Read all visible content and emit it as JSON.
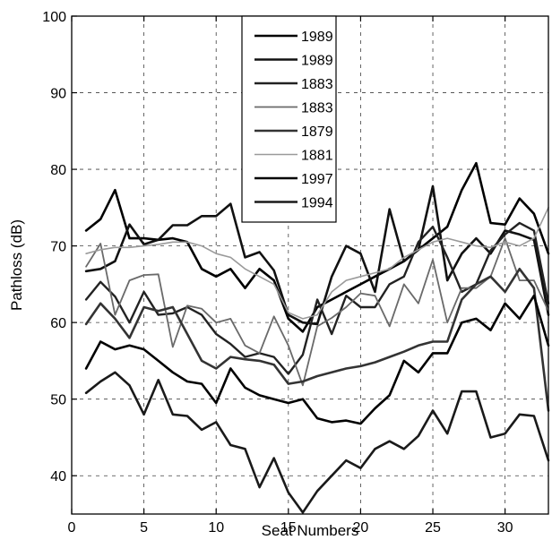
{
  "chart_data": {
    "type": "line",
    "title": "",
    "xlabel": "Seat Numbers",
    "ylabel": "Pathloss (dB)",
    "xlim": [
      0,
      33
    ],
    "ylim": [
      35,
      100
    ],
    "xticks": [
      0,
      5,
      10,
      15,
      20,
      25,
      30
    ],
    "yticks": [
      40,
      50,
      60,
      70,
      80,
      90,
      100
    ],
    "grid": true,
    "legend_position": "top-center",
    "x": [
      1,
      2,
      3,
      4,
      5,
      6,
      7,
      8,
      9,
      10,
      11,
      12,
      13,
      14,
      15,
      16,
      17,
      18,
      19,
      20,
      21,
      22,
      23,
      24,
      25,
      26,
      27,
      28,
      29,
      30,
      31,
      32,
      33
    ],
    "series": [
      {
        "name": "1989",
        "color": "#000000",
        "values": [
          72,
          73.5,
          77.3,
          71,
          71,
          70.8,
          71,
          70.5,
          67,
          66,
          67,
          64.5,
          67,
          65.5,
          60.5,
          58.8,
          62,
          63,
          64,
          65,
          66,
          67,
          68,
          69.5,
          71,
          72.5,
          77.3,
          80.8,
          73,
          72.8,
          76.2,
          74.2,
          69
        ]
      },
      {
        "name": "1989",
        "color": "#111111",
        "values": [
          66.7,
          67,
          68,
          72.8,
          70.2,
          70.8,
          72.7,
          72.7,
          73.9,
          73.9,
          75.5,
          68.5,
          69.2,
          66.8,
          61,
          60,
          59.8,
          66,
          70,
          69,
          64,
          74.8,
          68,
          69.5,
          77.8,
          65.5,
          69,
          71,
          69,
          72,
          71.5,
          70.8,
          61
        ]
      },
      {
        "name": "1883",
        "color": "#222222",
        "values": [
          63,
          65.3,
          63.4,
          60,
          64,
          61,
          61.2,
          62,
          61,
          58.5,
          57.2,
          55.5,
          56,
          55.5,
          53.3,
          55.8,
          63,
          58.5,
          63.5,
          62,
          62,
          65,
          66,
          70.5,
          72.5,
          68.5,
          64,
          65,
          69.4,
          71.5,
          73,
          72,
          62.5
        ]
      },
      {
        "name": "1883",
        "color": "#6a6a6a",
        "values": [
          67.3,
          70.3,
          61,
          65.5,
          66.2,
          66.3,
          56.8,
          62.2,
          61.8,
          60,
          60.5,
          57,
          56,
          60.8,
          57,
          51.8,
          59.5,
          60.6,
          62,
          63.8,
          63.5,
          59.5,
          65,
          62.5,
          68.2,
          60,
          64.5,
          64.5,
          66,
          71,
          65.5,
          65.5,
          61.5
        ]
      },
      {
        "name": "1879",
        "color": "#333333",
        "values": [
          59.8,
          62.5,
          60.5,
          58,
          62,
          61.5,
          62,
          58.5,
          55,
          54,
          55.5,
          55.2,
          55,
          54.5,
          52,
          52.3,
          53,
          53.5,
          54,
          54.3,
          54.8,
          55.5,
          56.2,
          57,
          57.5,
          57.5,
          63,
          65,
          66,
          64,
          67,
          64.5,
          48.5
        ]
      },
      {
        "name": "1881",
        "color": "#9a9a9a",
        "values": [
          69,
          69.5,
          69.8,
          69.8,
          70,
          70.2,
          70.5,
          70.5,
          70,
          69,
          68.5,
          67,
          66,
          65,
          61.3,
          60.5,
          61,
          64,
          65.5,
          66,
          66.5,
          67,
          68.5,
          69.5,
          70.5,
          71,
          70.5,
          70,
          69.8,
          70.5,
          70,
          71,
          75
        ]
      },
      {
        "name": "1997",
        "color": "#000000",
        "values": [
          54,
          57.5,
          56.5,
          57,
          56.5,
          55,
          53.5,
          52.3,
          52,
          49.5,
          54,
          51.5,
          50.5,
          50,
          49.5,
          50,
          47.5,
          47,
          47.2,
          46.8,
          48.8,
          50.5,
          55,
          53.5,
          56,
          56,
          60,
          60.5,
          59,
          62.5,
          60.5,
          63.5,
          57
        ]
      },
      {
        "name": "1994",
        "color": "#1a1a1a",
        "values": [
          50.8,
          52.3,
          53.5,
          51.8,
          48,
          52.5,
          48,
          47.8,
          46,
          47,
          44,
          43.5,
          38.5,
          42.3,
          37.8,
          35.2,
          38,
          40,
          42,
          41,
          43.5,
          44.5,
          43.5,
          45.2,
          48.5,
          45.5,
          51,
          51,
          45,
          45.5,
          48,
          47.8,
          42
        ]
      }
    ]
  }
}
